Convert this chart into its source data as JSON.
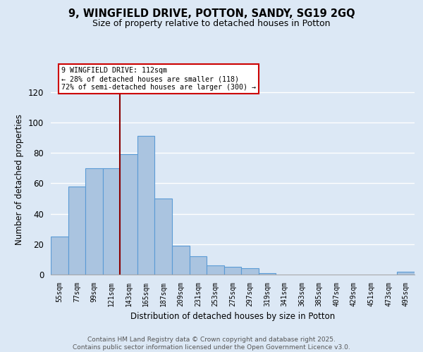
{
  "title": "9, WINGFIELD DRIVE, POTTON, SANDY, SG19 2GQ",
  "subtitle": "Size of property relative to detached houses in Potton",
  "xlabel": "Distribution of detached houses by size in Potton",
  "ylabel": "Number of detached properties",
  "bar_labels": [
    "55sqm",
    "77sqm",
    "99sqm",
    "121sqm",
    "143sqm",
    "165sqm",
    "187sqm",
    "209sqm",
    "231sqm",
    "253sqm",
    "275sqm",
    "297sqm",
    "319sqm",
    "341sqm",
    "363sqm",
    "385sqm",
    "407sqm",
    "429sqm",
    "451sqm",
    "473sqm",
    "495sqm"
  ],
  "bar_values": [
    25,
    58,
    70,
    70,
    79,
    91,
    50,
    19,
    12,
    6,
    5,
    4,
    1,
    0,
    0,
    0,
    0,
    0,
    0,
    0,
    2
  ],
  "bar_color": "#aac4e0",
  "bar_edge_color": "#5b9bd5",
  "vline_x": 3.5,
  "vline_color": "#8b0000",
  "annotation_line1": "9 WINGFIELD DRIVE: 112sqm",
  "annotation_line2": "← 28% of detached houses are smaller (118)",
  "annotation_line3": "72% of semi-detached houses are larger (300) →",
  "annotation_box_color": "#ffffff",
  "annotation_box_edge": "#cc0000",
  "ylim": [
    0,
    125
  ],
  "yticks": [
    0,
    20,
    40,
    60,
    80,
    100,
    120
  ],
  "bg_color": "#dce8f5",
  "grid_color": "#ffffff",
  "footer_line1": "Contains HM Land Registry data © Crown copyright and database right 2025.",
  "footer_line2": "Contains public sector information licensed under the Open Government Licence v3.0."
}
